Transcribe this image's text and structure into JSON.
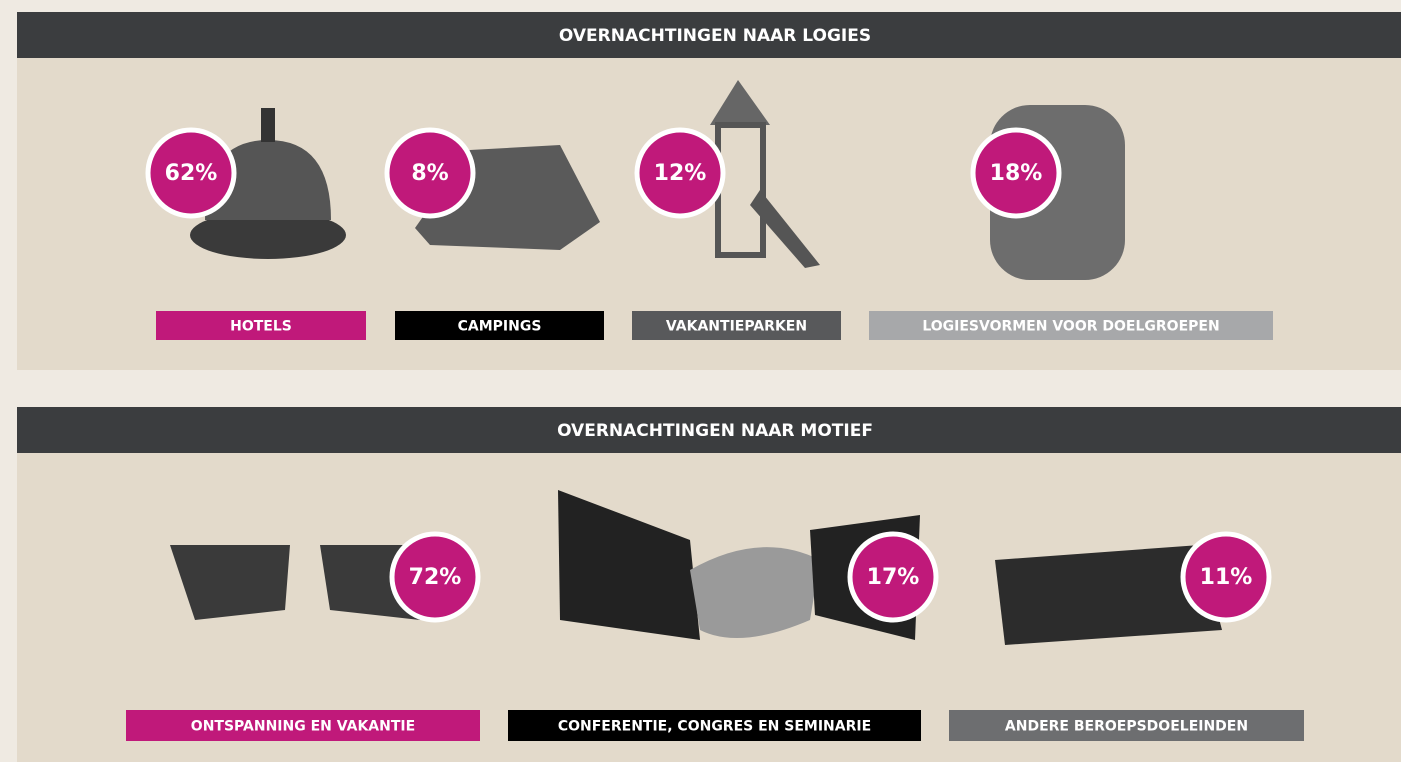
{
  "sections": [
    {
      "title": "OVERNACHTINGEN NAAR LOGIES",
      "items": [
        {
          "label": "HOTELS",
          "value": "62%",
          "color": "#c0197a"
        },
        {
          "label": "CAMPINGS",
          "value": "8%",
          "color": "#000000"
        },
        {
          "label": "VAKANTIEPARKEN",
          "value": "12%",
          "color": "#58595b"
        },
        {
          "label": "LOGIESVORMEN VOOR DOELGROEPEN",
          "value": "18%",
          "color": "#a7a8aa"
        }
      ]
    },
    {
      "title": "OVERNACHTINGEN NAAR MOTIEF",
      "items": [
        {
          "label": "ONTSPANNING EN VAKANTIE",
          "value": "72%",
          "color": "#c0197a"
        },
        {
          "label": "CONFERENTIE, CONGRES EN SEMINARIE",
          "value": "17%",
          "color": "#000000"
        },
        {
          "label": "ANDERE BEROEPSDOELEINDEN",
          "value": "11%",
          "color": "#6d6e70"
        }
      ]
    }
  ]
}
